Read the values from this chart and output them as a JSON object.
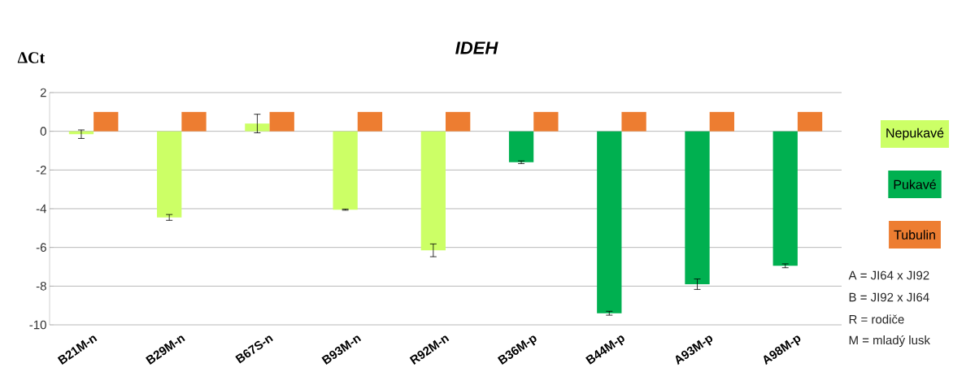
{
  "chart_data": {
    "type": "bar",
    "title": "IDEH",
    "ylabel": "ΔCt",
    "categories": [
      "B21M-n",
      "B29M-n",
      "B67S-n",
      "B93M-n",
      "R92M-n",
      "B36M-p",
      "B44M-p",
      "A93M-p",
      "A98M-p"
    ],
    "series": [
      {
        "name": "Nepukavé",
        "color": "#ccff66",
        "values": [
          -0.15,
          -4.45,
          0.4,
          -4.05,
          -6.15,
          null,
          null,
          null,
          null
        ],
        "errors": [
          0.22,
          0.15,
          0.48,
          0.03,
          0.33,
          null,
          null,
          null,
          null
        ]
      },
      {
        "name": "Pukavé",
        "color": "#00b050",
        "values": [
          null,
          null,
          null,
          null,
          null,
          -1.6,
          -9.4,
          -7.9,
          -6.95
        ],
        "errors": [
          null,
          null,
          null,
          null,
          null,
          0.07,
          0.1,
          0.27,
          0.1
        ]
      },
      {
        "name": "Tubulin",
        "color": "#ed7d31",
        "values": [
          1,
          1,
          1,
          1,
          1,
          1,
          1,
          1,
          1
        ]
      }
    ],
    "ylim": [
      -10,
      2
    ],
    "yticks": [
      -10,
      -8,
      -6,
      -4,
      -2,
      0,
      2
    ],
    "grid": "y",
    "legend": "right",
    "annotations": [
      "A = JI64 x JI92",
      "B = JI92 x JI64",
      "R = rodiče",
      "M = mladý lusk"
    ]
  }
}
